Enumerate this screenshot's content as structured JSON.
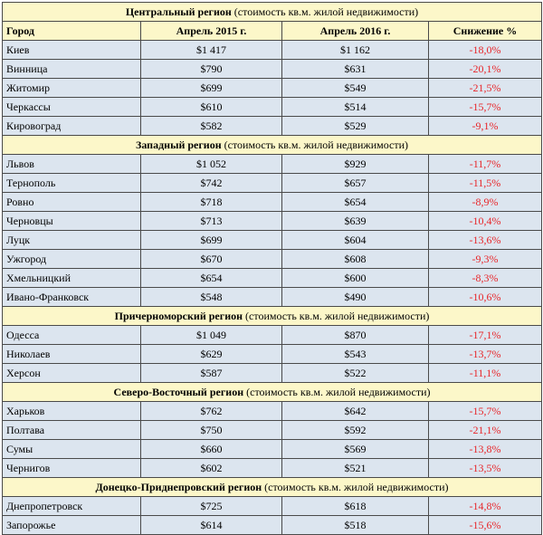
{
  "headers": {
    "city": "Город",
    "apr2015": "Апрель 2015 г.",
    "apr2016": "Апрель 2016 г.",
    "drop": "Снижение %"
  },
  "region_note": "(стоимость кв.м. жилой недвижимости)",
  "colors": {
    "header_bg": "#fcf7c9",
    "row_bg": "#dce5ef",
    "negative": "#e8262a"
  },
  "regions": [
    {
      "name": "Центральный регион",
      "rows": [
        {
          "city": "Киев",
          "apr2015": "$1 417",
          "apr2016": "$1 162",
          "drop": "-18,0%"
        },
        {
          "city": "Винница",
          "apr2015": "$790",
          "apr2016": "$631",
          "drop": "-20,1%"
        },
        {
          "city": "Житомир",
          "apr2015": "$699",
          "apr2016": "$549",
          "drop": "-21,5%"
        },
        {
          "city": "Черкассы",
          "apr2015": "$610",
          "apr2016": "$514",
          "drop": "-15,7%"
        },
        {
          "city": "Кировоград",
          "apr2015": "$582",
          "apr2016": "$529",
          "drop": "-9,1%"
        }
      ]
    },
    {
      "name": "Западный регион",
      "rows": [
        {
          "city": "Львов",
          "apr2015": "$1 052",
          "apr2016": "$929",
          "drop": "-11,7%"
        },
        {
          "city": "Тернополь",
          "apr2015": "$742",
          "apr2016": "$657",
          "drop": "-11,5%"
        },
        {
          "city": "Ровно",
          "apr2015": "$718",
          "apr2016": "$654",
          "drop": "-8,9%"
        },
        {
          "city": "Черновцы",
          "apr2015": "$713",
          "apr2016": "$639",
          "drop": "-10,4%"
        },
        {
          "city": "Луцк",
          "apr2015": "$699",
          "apr2016": "$604",
          "drop": "-13,6%"
        },
        {
          "city": "Ужгород",
          "apr2015": "$670",
          "apr2016": "$608",
          "drop": "-9,3%"
        },
        {
          "city": "Хмельницкий",
          "apr2015": "$654",
          "apr2016": "$600",
          "drop": "-8,3%"
        },
        {
          "city": "Ивано-Франковск",
          "apr2015": "$548",
          "apr2016": "$490",
          "drop": "-10,6%"
        }
      ]
    },
    {
      "name": "Причерноморский регион",
      "rows": [
        {
          "city": "Одесса",
          "apr2015": "$1 049",
          "apr2016": "$870",
          "drop": "-17,1%"
        },
        {
          "city": "Николаев",
          "apr2015": "$629",
          "apr2016": "$543",
          "drop": "-13,7%"
        },
        {
          "city": "Херсон",
          "apr2015": "$587",
          "apr2016": "$522",
          "drop": "-11,1%"
        }
      ]
    },
    {
      "name": "Северо-Восточный регион",
      "rows": [
        {
          "city": "Харьков",
          "apr2015": "$762",
          "apr2016": "$642",
          "drop": "-15,7%"
        },
        {
          "city": "Полтава",
          "apr2015": "$750",
          "apr2016": "$592",
          "drop": "-21,1%"
        },
        {
          "city": "Сумы",
          "apr2015": "$660",
          "apr2016": "$569",
          "drop": "-13,8%"
        },
        {
          "city": "Чернигов",
          "apr2015": "$602",
          "apr2016": "$521",
          "drop": "-13,5%"
        }
      ]
    },
    {
      "name": "Донецко-Приднепровский регион",
      "rows": [
        {
          "city": "Днепропетровск",
          "apr2015": "$725",
          "apr2016": "$618",
          "drop": "-14,8%"
        },
        {
          "city": "Запорожье",
          "apr2015": "$614",
          "apr2016": "$518",
          "drop": "-15,6%"
        }
      ]
    }
  ]
}
